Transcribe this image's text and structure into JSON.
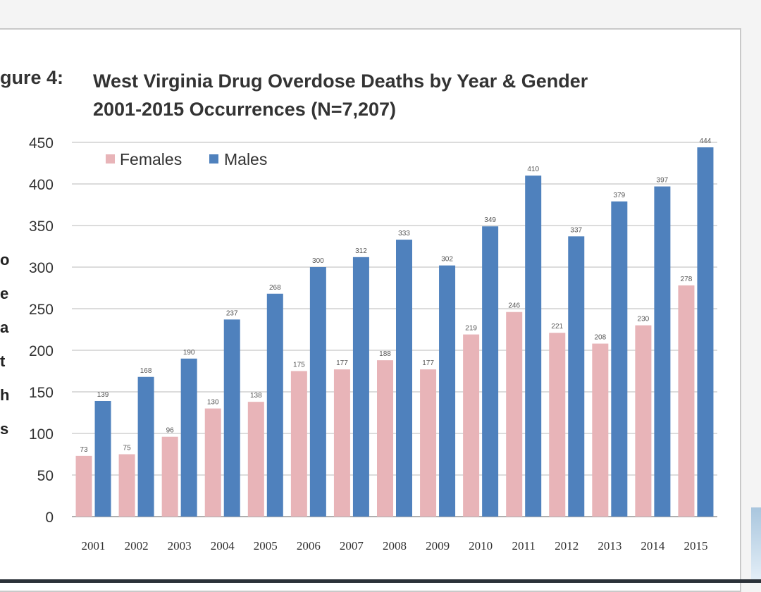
{
  "figure_label": "gure 4:",
  "title_line1": "West Virginia Drug Overdose Deaths by Year & Gender",
  "title_line2": "2001-2015 Occurrences (N=7,207)",
  "ylabel_fragment": "o\ne\na\nt\nh\ns",
  "colors": {
    "females": "#e8b4b8",
    "males": "#4f81bd",
    "grid": "#c8c8c8",
    "text": "#333333"
  },
  "chart_data": {
    "type": "bar",
    "title": "West Virginia Drug Overdose Deaths by Year & Gender 2001-2015 Occurrences (N=7,207)",
    "xlabel": "",
    "ylabel": "",
    "ylim": [
      0,
      450
    ],
    "yticks": [
      0,
      50,
      100,
      150,
      200,
      250,
      300,
      350,
      400,
      450
    ],
    "grid": true,
    "legend": "top-left",
    "categories": [
      "2001",
      "2002",
      "2003",
      "2004",
      "2005",
      "2006",
      "2007",
      "2008",
      "2009",
      "2010",
      "2011",
      "2012",
      "2013",
      "2014",
      "2015"
    ],
    "series": [
      {
        "name": "Females",
        "values": [
          73,
          75,
          96,
          130,
          138,
          175,
          177,
          188,
          177,
          219,
          246,
          221,
          208,
          230,
          278
        ],
        "labels": [
          "73",
          "75",
          "96",
          "130",
          "138",
          "175",
          "177",
          "188",
          "177",
          "219",
          "246",
          "221",
          "208",
          "230",
          "278"
        ]
      },
      {
        "name": "Males",
        "values": [
          139,
          168,
          190,
          237,
          268,
          300,
          312,
          333,
          302,
          349,
          410,
          337,
          379,
          397,
          444
        ],
        "labels": [
          "139",
          "168",
          "190",
          "237",
          "268",
          "300",
          "312",
          "333",
          "302",
          "349",
          "410",
          "337",
          "379",
          "397",
          "444"
        ]
      }
    ]
  }
}
